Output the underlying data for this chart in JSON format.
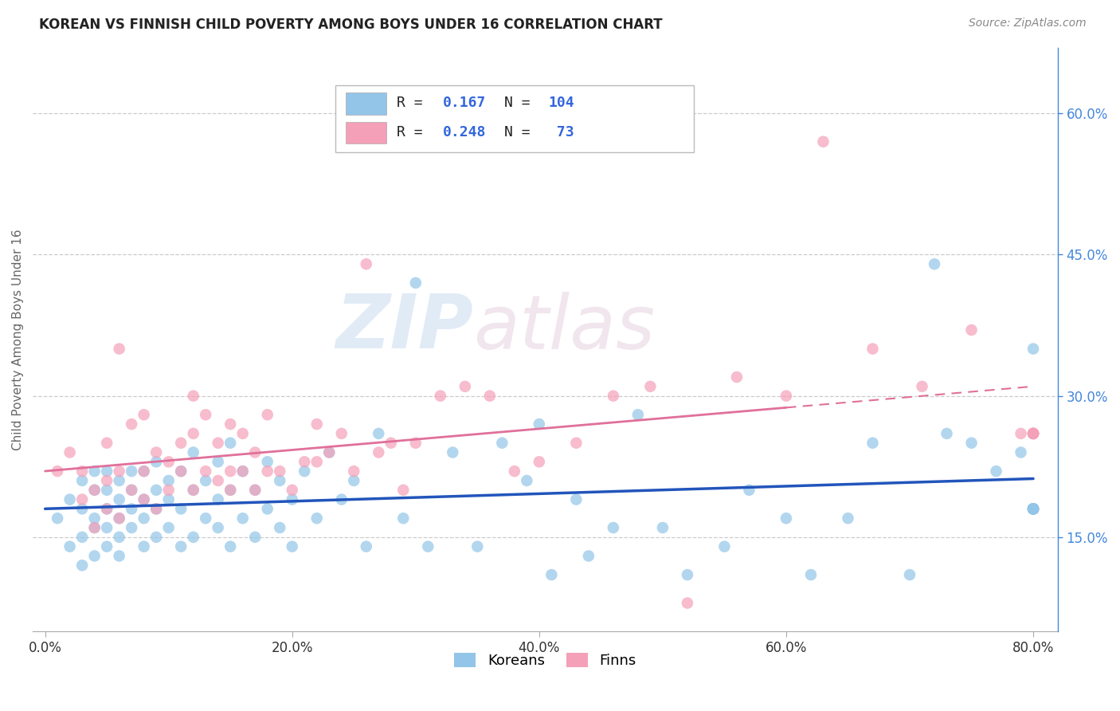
{
  "title": "KOREAN VS FINNISH CHILD POVERTY AMONG BOYS UNDER 16 CORRELATION CHART",
  "source": "Source: ZipAtlas.com",
  "xlabel_ticks": [
    "0.0%",
    "20.0%",
    "40.0%",
    "60.0%",
    "80.0%"
  ],
  "xlabel_tick_vals": [
    0.0,
    0.2,
    0.4,
    0.6,
    0.8
  ],
  "ylabel": "Child Poverty Among Boys Under 16",
  "ylabel_ticks": [
    "15.0%",
    "30.0%",
    "45.0%",
    "60.0%"
  ],
  "ylabel_tick_vals": [
    0.15,
    0.3,
    0.45,
    0.6
  ],
  "xlim": [
    -0.01,
    0.82
  ],
  "ylim": [
    0.05,
    0.67
  ],
  "watermark_zip": "ZIP",
  "watermark_atlas": "atlas",
  "korean_color": "#92C5E8",
  "finnish_color": "#F4A0B8",
  "korean_line_color": "#2255BB",
  "finnish_line_color": "#E0709A",
  "korean_R": "0.167",
  "korean_N": "104",
  "finnish_R": "0.248",
  "finnish_N": "73",
  "legend_R_label": "R = ",
  "legend_N_label": "N = ",
  "korean_scatter_x": [
    0.01,
    0.02,
    0.02,
    0.03,
    0.03,
    0.03,
    0.03,
    0.04,
    0.04,
    0.04,
    0.04,
    0.04,
    0.05,
    0.05,
    0.05,
    0.05,
    0.05,
    0.06,
    0.06,
    0.06,
    0.06,
    0.06,
    0.07,
    0.07,
    0.07,
    0.07,
    0.08,
    0.08,
    0.08,
    0.08,
    0.09,
    0.09,
    0.09,
    0.09,
    0.1,
    0.1,
    0.1,
    0.11,
    0.11,
    0.11,
    0.12,
    0.12,
    0.12,
    0.13,
    0.13,
    0.14,
    0.14,
    0.14,
    0.15,
    0.15,
    0.15,
    0.16,
    0.16,
    0.17,
    0.17,
    0.18,
    0.18,
    0.19,
    0.19,
    0.2,
    0.2,
    0.21,
    0.22,
    0.23,
    0.24,
    0.25,
    0.26,
    0.27,
    0.29,
    0.3,
    0.31,
    0.33,
    0.35,
    0.37,
    0.39,
    0.4,
    0.41,
    0.43,
    0.44,
    0.46,
    0.48,
    0.5,
    0.52,
    0.55,
    0.57,
    0.6,
    0.62,
    0.65,
    0.67,
    0.7,
    0.72,
    0.73,
    0.75,
    0.77,
    0.79,
    0.8,
    0.8,
    0.8,
    0.8,
    0.8,
    0.8,
    0.8,
    0.8,
    0.8
  ],
  "korean_scatter_y": [
    0.17,
    0.19,
    0.14,
    0.18,
    0.21,
    0.15,
    0.12,
    0.17,
    0.2,
    0.16,
    0.22,
    0.13,
    0.18,
    0.16,
    0.2,
    0.14,
    0.22,
    0.15,
    0.19,
    0.17,
    0.21,
    0.13,
    0.18,
    0.22,
    0.16,
    0.2,
    0.14,
    0.19,
    0.17,
    0.22,
    0.15,
    0.2,
    0.18,
    0.23,
    0.16,
    0.21,
    0.19,
    0.14,
    0.22,
    0.18,
    0.15,
    0.2,
    0.24,
    0.17,
    0.21,
    0.16,
    0.19,
    0.23,
    0.14,
    0.2,
    0.25,
    0.17,
    0.22,
    0.15,
    0.2,
    0.18,
    0.23,
    0.16,
    0.21,
    0.14,
    0.19,
    0.22,
    0.17,
    0.24,
    0.19,
    0.21,
    0.14,
    0.26,
    0.17,
    0.42,
    0.14,
    0.24,
    0.14,
    0.25,
    0.21,
    0.27,
    0.11,
    0.19,
    0.13,
    0.16,
    0.28,
    0.16,
    0.11,
    0.14,
    0.2,
    0.17,
    0.11,
    0.17,
    0.25,
    0.11,
    0.44,
    0.26,
    0.25,
    0.22,
    0.24,
    0.18,
    0.35,
    0.18,
    0.18,
    0.18,
    0.18,
    0.18,
    0.18,
    0.18
  ],
  "finnish_scatter_x": [
    0.01,
    0.02,
    0.03,
    0.03,
    0.04,
    0.04,
    0.05,
    0.05,
    0.05,
    0.06,
    0.06,
    0.06,
    0.07,
    0.07,
    0.08,
    0.08,
    0.08,
    0.09,
    0.09,
    0.1,
    0.1,
    0.11,
    0.11,
    0.12,
    0.12,
    0.12,
    0.13,
    0.13,
    0.14,
    0.14,
    0.15,
    0.15,
    0.15,
    0.16,
    0.16,
    0.17,
    0.17,
    0.18,
    0.18,
    0.19,
    0.2,
    0.21,
    0.22,
    0.22,
    0.23,
    0.24,
    0.25,
    0.26,
    0.27,
    0.28,
    0.29,
    0.3,
    0.32,
    0.34,
    0.36,
    0.38,
    0.4,
    0.43,
    0.46,
    0.49,
    0.52,
    0.56,
    0.6,
    0.63,
    0.67,
    0.71,
    0.75,
    0.79,
    0.8,
    0.8,
    0.8,
    0.8,
    0.8
  ],
  "finnish_scatter_y": [
    0.22,
    0.24,
    0.19,
    0.22,
    0.2,
    0.16,
    0.21,
    0.18,
    0.25,
    0.17,
    0.22,
    0.35,
    0.2,
    0.27,
    0.19,
    0.22,
    0.28,
    0.18,
    0.24,
    0.2,
    0.23,
    0.22,
    0.25,
    0.2,
    0.26,
    0.3,
    0.22,
    0.28,
    0.21,
    0.25,
    0.2,
    0.27,
    0.22,
    0.22,
    0.26,
    0.2,
    0.24,
    0.22,
    0.28,
    0.22,
    0.2,
    0.23,
    0.23,
    0.27,
    0.24,
    0.26,
    0.22,
    0.44,
    0.24,
    0.25,
    0.2,
    0.25,
    0.3,
    0.31,
    0.3,
    0.22,
    0.23,
    0.25,
    0.3,
    0.31,
    0.08,
    0.32,
    0.3,
    0.57,
    0.35,
    0.31,
    0.37,
    0.26,
    0.26,
    0.26,
    0.26,
    0.26,
    0.26
  ]
}
